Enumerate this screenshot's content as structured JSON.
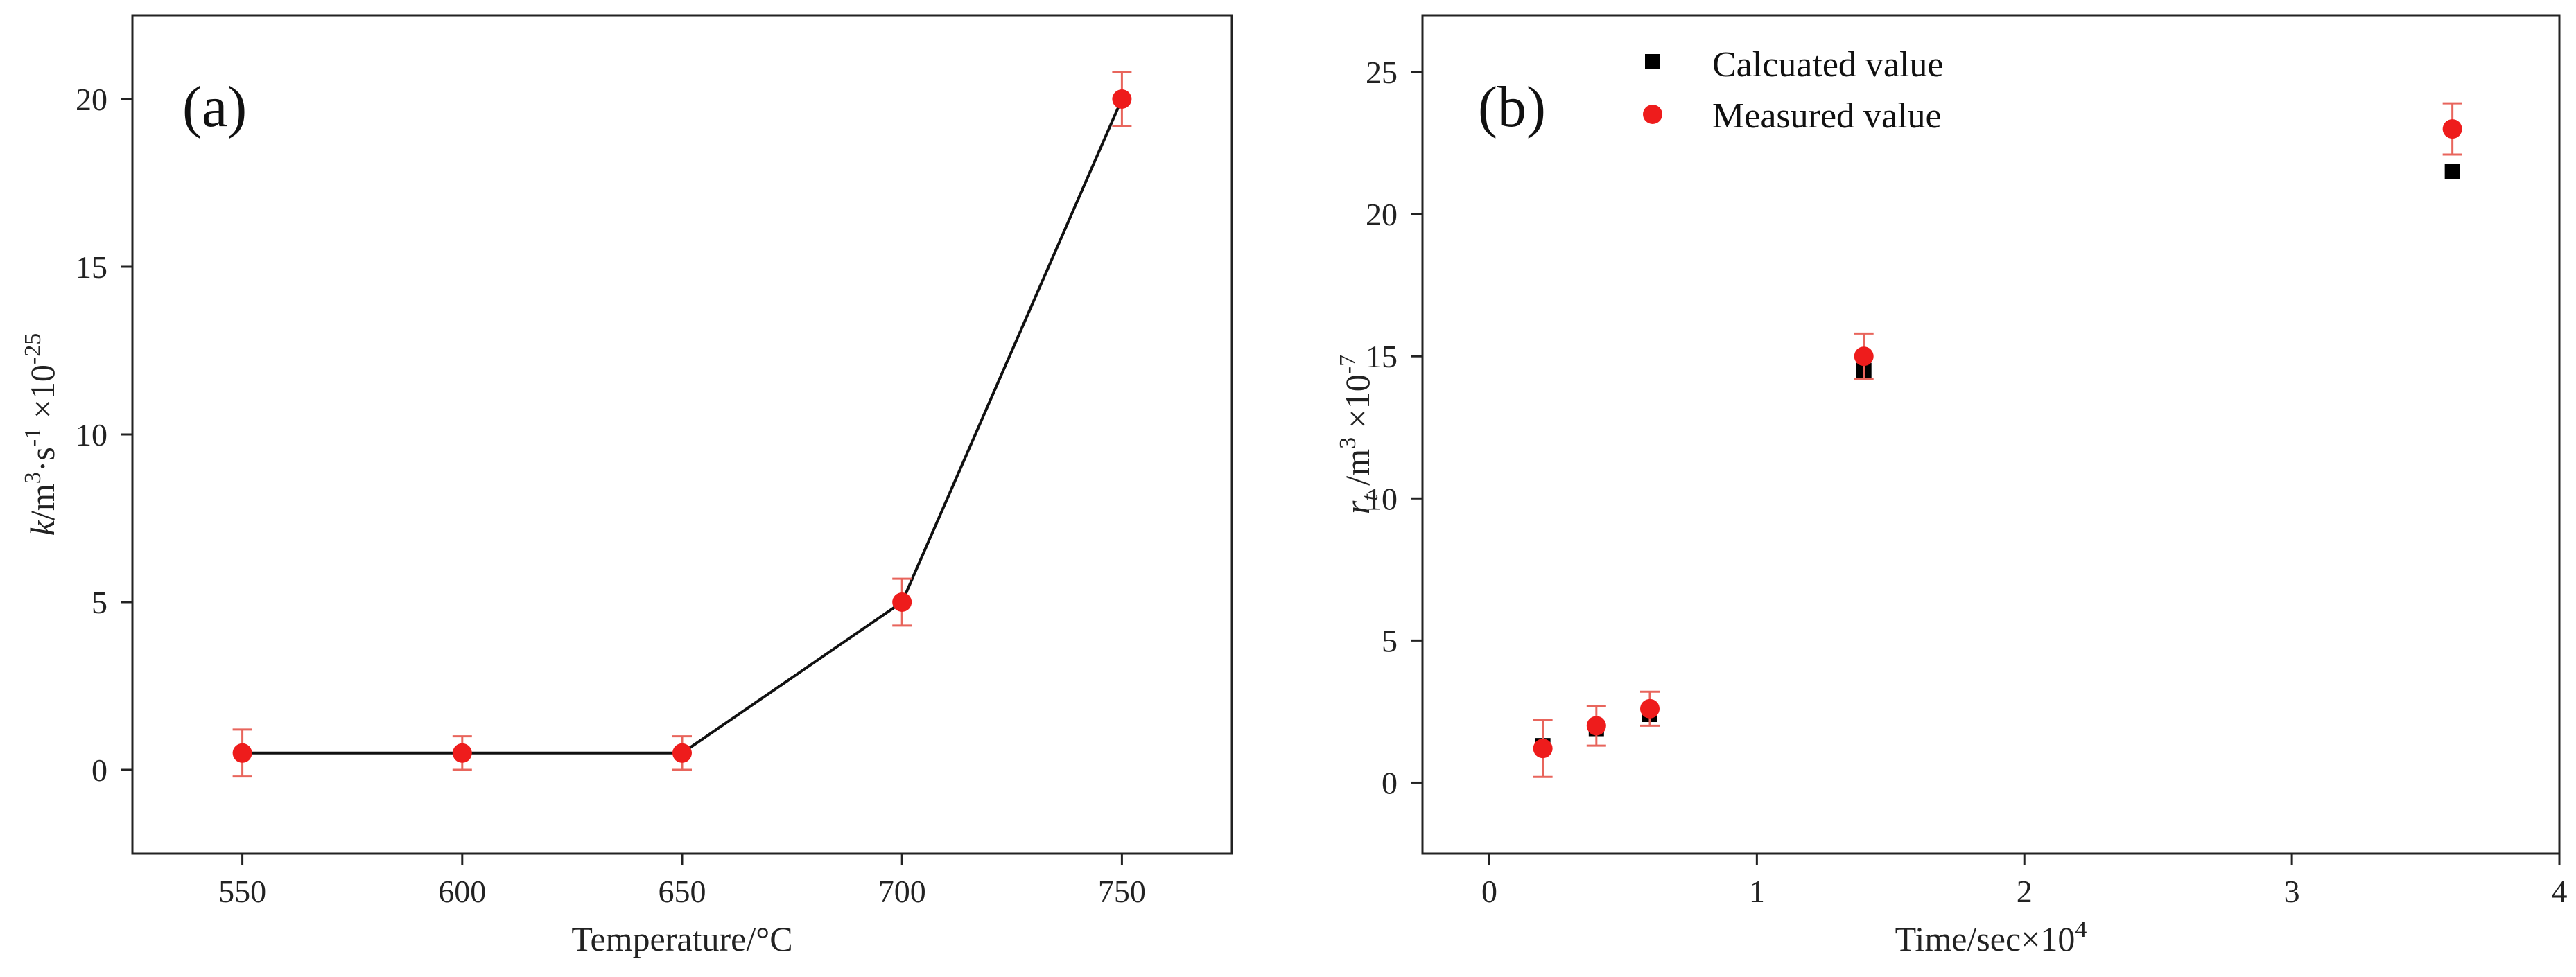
{
  "chart_data": [
    {
      "panel": "(a)",
      "type": "line",
      "xlabel": "Temperature/°C",
      "ylabel": {
        "var": "k",
        "unit": "/m",
        "exp1": "3",
        "mid": "·s",
        "exp2": "-1",
        "factor": " ×10",
        "exp3": "-25"
      },
      "xlim": [
        525,
        775
      ],
      "ylim": [
        -2.5,
        22.5
      ],
      "xticks": [
        550,
        600,
        650,
        700,
        750
      ],
      "yticks": [
        0,
        5,
        10,
        15,
        20
      ],
      "grid": false,
      "series": [
        {
          "name": "k",
          "x": [
            550,
            600,
            650,
            700,
            750
          ],
          "y": [
            0.5,
            0.5,
            0.5,
            5,
            20
          ],
          "err": [
            0.7,
            0.5,
            0.5,
            0.7,
            0.8
          ],
          "color": "#ee1c1c",
          "marker": "circle",
          "line_color": "#111111"
        }
      ]
    },
    {
      "panel": "(b)",
      "type": "scatter",
      "xlabel": {
        "text": "Time/sec×10",
        "exp": "4"
      },
      "ylabel": {
        "var": "r",
        "sub": "t",
        "unit": " /m",
        "exp1": "3",
        "factor": " ×10",
        "exp2": "-7"
      },
      "xlim": [
        -0.25,
        4
      ],
      "ylim": [
        -2.5,
        27
      ],
      "xticks": [
        0,
        1,
        2,
        3,
        4
      ],
      "yticks": [
        0,
        5,
        10,
        15,
        20,
        25
      ],
      "grid": false,
      "legend_position": "top-center",
      "series": [
        {
          "name": "Calcuated value",
          "x": [
            0.2,
            0.4,
            0.6,
            1.4,
            3.6
          ],
          "y": [
            1.3,
            1.9,
            2.4,
            14.5,
            21.5
          ],
          "color": "#000000",
          "marker": "square"
        },
        {
          "name": "Measured value",
          "x": [
            0.2,
            0.4,
            0.6,
            1.4,
            3.6
          ],
          "y": [
            1.2,
            2.0,
            2.6,
            15.0,
            23.0
          ],
          "err": [
            1.0,
            0.7,
            0.6,
            0.8,
            0.9
          ],
          "color": "#ee1c1c",
          "marker": "circle"
        }
      ]
    }
  ]
}
